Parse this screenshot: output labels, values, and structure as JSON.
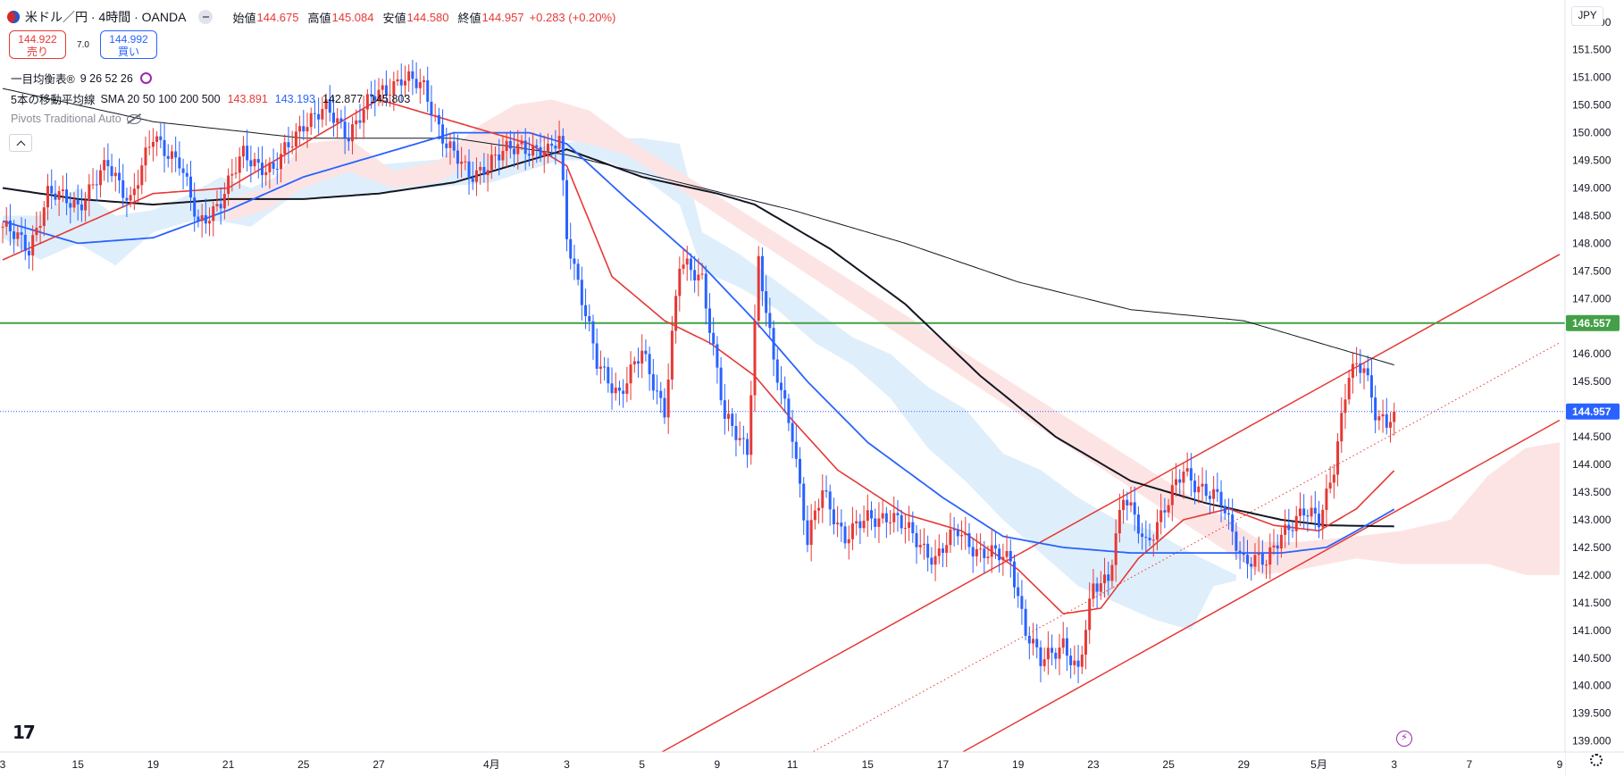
{
  "header": {
    "symbol": "米ドル／円 · 4時間 · OANDA",
    "open_label": "始値",
    "open": "144.675",
    "high_label": "高値",
    "high": "145.084",
    "low_label": "安値",
    "low": "144.580",
    "close_label": "終値",
    "close": "144.957",
    "change": "+0.283 (+0.20%)"
  },
  "trade": {
    "sell_price": "144.922",
    "sell_label": "売り",
    "spread": "7.0",
    "buy_price": "144.992",
    "buy_label": "買い"
  },
  "indicators": {
    "ichimoku_name": "一目均衡表®",
    "ichimoku_params": "9 26 52 26",
    "ma_name": "5本の移動平均線",
    "ma_params": "SMA 20 50 100 200 500",
    "ma_values": [
      {
        "value": "143.891",
        "color": "#e53935"
      },
      {
        "value": "143.193",
        "color": "#2962ff"
      },
      {
        "value": "142.877",
        "color": "#131722"
      },
      {
        "value": "145.803",
        "color": "#131722"
      }
    ],
    "pivots_name": "Pivots Traditional Auto"
  },
  "currency": "JPY",
  "colors": {
    "up": "#e53935",
    "down": "#2962ff",
    "ma20": "#e53935",
    "ma50": "#2962ff",
    "ma200": "#131722",
    "ma500": "#131722",
    "hline": "#43a047",
    "channel": "#e53935",
    "cloud_bull": "#dfeefb",
    "cloud_bear": "#fde4e4"
  },
  "chart_data": {
    "type": "candlestick",
    "ylim": [
      138.8,
      152.4
    ],
    "y_ticks": [
      "139.000",
      "139.500",
      "140.000",
      "140.500",
      "141.000",
      "141.500",
      "142.000",
      "142.500",
      "143.000",
      "143.500",
      "144.000",
      "144.500",
      "145.000",
      "145.500",
      "146.000",
      "146.500",
      "147.000",
      "147.500",
      "148.000",
      "148.500",
      "149.000",
      "149.500",
      "150.000",
      "150.500",
      "151.000",
      "151.500",
      "152.000"
    ],
    "x_ticks": [
      "3",
      "15",
      "19",
      "21",
      "25",
      "27",
      "4月",
      "3",
      "5",
      "9",
      "11",
      "15",
      "17",
      "19",
      "23",
      "25",
      "29",
      "5月",
      "3",
      "7",
      "9"
    ],
    "x_ticks_bar_index": [
      0,
      20,
      40,
      60,
      80,
      100,
      130,
      150,
      170,
      190,
      210,
      230,
      250,
      270,
      290,
      310,
      330,
      350,
      370,
      390,
      414
    ],
    "horizontal_line": {
      "price": 146.557,
      "label": "146.557"
    },
    "last_price": {
      "price": 144.957,
      "label": "144.957"
    },
    "channel": {
      "upper": {
        "x1": 170,
        "y1": 138.6,
        "x2": 414,
        "y2": 147.8
      },
      "middle": {
        "x1": 210,
        "y1": 138.6,
        "x2": 414,
        "y2": 146.2
      },
      "lower": {
        "x1": 250,
        "y1": 138.6,
        "x2": 414,
        "y2": 144.8
      }
    },
    "candles": {
      "n": 370,
      "anchors": [
        [
          0,
          148.3
        ],
        [
          7,
          147.9
        ],
        [
          12,
          148.9
        ],
        [
          20,
          148.7
        ],
        [
          28,
          149.4
        ],
        [
          34,
          148.8
        ],
        [
          40,
          149.9
        ],
        [
          47,
          149.5
        ],
        [
          52,
          148.3
        ],
        [
          58,
          148.8
        ],
        [
          64,
          149.6
        ],
        [
          72,
          149.3
        ],
        [
          80,
          150.2
        ],
        [
          86,
          150.4
        ],
        [
          92,
          150.0
        ],
        [
          98,
          150.6
        ],
        [
          106,
          151.0
        ],
        [
          112,
          150.8
        ],
        [
          118,
          149.8
        ],
        [
          124,
          149.2
        ],
        [
          130,
          149.5
        ],
        [
          138,
          149.8
        ],
        [
          145,
          149.6
        ],
        [
          148,
          149.9
        ],
        [
          150,
          148.2
        ],
        [
          154,
          147.0
        ],
        [
          158,
          145.8
        ],
        [
          164,
          145.3
        ],
        [
          170,
          146.0
        ],
        [
          176,
          145.0
        ],
        [
          180,
          147.6
        ],
        [
          186,
          147.4
        ],
        [
          192,
          144.8
        ],
        [
          198,
          144.3
        ],
        [
          201,
          147.7
        ],
        [
          205,
          145.8
        ],
        [
          210,
          144.6
        ],
        [
          214,
          142.6
        ],
        [
          218,
          143.5
        ],
        [
          224,
          142.7
        ],
        [
          230,
          143.0
        ],
        [
          236,
          143.1
        ],
        [
          242,
          142.7
        ],
        [
          248,
          142.3
        ],
        [
          254,
          142.8
        ],
        [
          260,
          142.4
        ],
        [
          268,
          142.3
        ],
        [
          272,
          141.0
        ],
        [
          276,
          140.4
        ],
        [
          282,
          140.8
        ],
        [
          286,
          140.2
        ],
        [
          290,
          141.8
        ],
        [
          294,
          142.0
        ],
        [
          298,
          143.4
        ],
        [
          304,
          142.6
        ],
        [
          310,
          143.3
        ],
        [
          314,
          143.9
        ],
        [
          320,
          143.5
        ],
        [
          324,
          143.3
        ],
        [
          330,
          142.3
        ],
        [
          336,
          142.2
        ],
        [
          340,
          142.8
        ],
        [
          346,
          143.1
        ],
        [
          350,
          143.0
        ],
        [
          354,
          144.0
        ],
        [
          358,
          145.6
        ],
        [
          362,
          145.8
        ],
        [
          365,
          145.0
        ],
        [
          368,
          144.7
        ],
        [
          370,
          144.96
        ]
      ]
    },
    "ma_anchors": {
      "sma20": [
        [
          0,
          147.7
        ],
        [
          20,
          148.3
        ],
        [
          40,
          148.9
        ],
        [
          60,
          149.0
        ],
        [
          80,
          149.8
        ],
        [
          100,
          150.6
        ],
        [
          120,
          150.2
        ],
        [
          140,
          149.8
        ],
        [
          150,
          149.4
        ],
        [
          162,
          147.4
        ],
        [
          176,
          146.6
        ],
        [
          188,
          146.2
        ],
        [
          200,
          145.6
        ],
        [
          210,
          144.8
        ],
        [
          222,
          143.9
        ],
        [
          240,
          143.1
        ],
        [
          255,
          142.8
        ],
        [
          270,
          142.1
        ],
        [
          282,
          141.3
        ],
        [
          292,
          141.4
        ],
        [
          302,
          142.3
        ],
        [
          314,
          143.0
        ],
        [
          326,
          143.2
        ],
        [
          338,
          142.9
        ],
        [
          350,
          142.8
        ],
        [
          360,
          143.2
        ],
        [
          370,
          143.89
        ]
      ],
      "sma50": [
        [
          0,
          148.4
        ],
        [
          20,
          148.0
        ],
        [
          40,
          148.1
        ],
        [
          60,
          148.6
        ],
        [
          80,
          149.2
        ],
        [
          100,
          149.6
        ],
        [
          120,
          150.0
        ],
        [
          140,
          150.0
        ],
        [
          150,
          149.8
        ],
        [
          166,
          148.8
        ],
        [
          186,
          147.6
        ],
        [
          200,
          146.6
        ],
        [
          214,
          145.5
        ],
        [
          230,
          144.4
        ],
        [
          250,
          143.4
        ],
        [
          266,
          142.7
        ],
        [
          282,
          142.5
        ],
        [
          300,
          142.4
        ],
        [
          320,
          142.4
        ],
        [
          340,
          142.4
        ],
        [
          352,
          142.5
        ],
        [
          360,
          142.8
        ],
        [
          370,
          143.19
        ]
      ],
      "sma200": [
        [
          0,
          149.0
        ],
        [
          20,
          148.8
        ],
        [
          40,
          148.7
        ],
        [
          60,
          148.8
        ],
        [
          80,
          148.8
        ],
        [
          100,
          148.9
        ],
        [
          120,
          149.1
        ],
        [
          140,
          149.5
        ],
        [
          150,
          149.7
        ],
        [
          170,
          149.2
        ],
        [
          190,
          148.9
        ],
        [
          200,
          148.7
        ],
        [
          220,
          147.9
        ],
        [
          240,
          146.9
        ],
        [
          260,
          145.6
        ],
        [
          280,
          144.5
        ],
        [
          300,
          143.7
        ],
        [
          320,
          143.3
        ],
        [
          340,
          143.0
        ],
        [
          352,
          142.9
        ],
        [
          370,
          142.88
        ]
      ],
      "sma500": [
        [
          0,
          150.8
        ],
        [
          40,
          150.2
        ],
        [
          80,
          149.9
        ],
        [
          120,
          149.9
        ],
        [
          150,
          149.6
        ],
        [
          180,
          149.1
        ],
        [
          210,
          148.6
        ],
        [
          240,
          148.0
        ],
        [
          270,
          147.3
        ],
        [
          300,
          146.8
        ],
        [
          330,
          146.6
        ],
        [
          350,
          146.2
        ],
        [
          370,
          145.8
        ]
      ]
    },
    "cloud": {
      "bull": [
        [
          0,
          148.5,
          148.1
        ],
        [
          10,
          148.5,
          147.7
        ],
        [
          20,
          149.0,
          148.0
        ],
        [
          30,
          148.5,
          147.6
        ],
        [
          40,
          148.6,
          148.2
        ],
        [
          50,
          148.9,
          148.4
        ],
        [
          58,
          149.2,
          148.4
        ],
        [
          66,
          149.0,
          148.3
        ],
        [
          76,
          149.3,
          148.8
        ],
        [
          96,
          149.4,
          148.9
        ],
        [
          130,
          149.6,
          149.1
        ],
        [
          148,
          149.8,
          149.5
        ],
        [
          160,
          149.9,
          149.5
        ],
        [
          170,
          149.9,
          149.2
        ],
        [
          180,
          149.8,
          148.7
        ],
        [
          186,
          148.2,
          147.5
        ],
        [
          196,
          147.8,
          147.2
        ],
        [
          206,
          147.3,
          146.8
        ],
        [
          216,
          146.8,
          146.2
        ],
        [
          226,
          146.3,
          145.8
        ],
        [
          236,
          146.0,
          145.2
        ],
        [
          246,
          145.4,
          144.3
        ],
        [
          256,
          145.0,
          143.7
        ],
        [
          266,
          144.2,
          143.0
        ],
        [
          276,
          143.9,
          142.4
        ],
        [
          286,
          143.4,
          141.8
        ],
        [
          296,
          143.0,
          141.5
        ],
        [
          306,
          142.8,
          141.2
        ],
        [
          316,
          142.4,
          141.0
        ],
        [
          322,
          142.2,
          141.8
        ],
        [
          328,
          142.0,
          141.9
        ]
      ],
      "bear": [
        [
          60,
          148.8,
          148.4
        ],
        [
          70,
          149.0,
          148.6
        ],
        [
          80,
          149.8,
          149.0
        ],
        [
          92,
          149.9,
          149.3
        ],
        [
          104,
          149.3,
          149.0
        ],
        [
          116,
          149.5,
          149.1
        ],
        [
          126,
          150.1,
          149.5
        ],
        [
          136,
          150.5,
          149.6
        ],
        [
          146,
          150.6,
          149.9
        ],
        [
          156,
          150.4,
          149.8
        ],
        [
          166,
          149.9,
          149.6
        ],
        [
          335,
          142.6,
          142.0
        ],
        [
          345,
          142.6,
          142.1
        ],
        [
          360,
          142.7,
          142.3
        ],
        [
          372,
          142.8,
          142.2
        ],
        [
          385,
          143.0,
          142.2
        ],
        [
          395,
          143.8,
          142.2
        ],
        [
          405,
          144.3,
          142.0
        ],
        [
          414,
          144.4,
          142.0
        ]
      ]
    }
  }
}
